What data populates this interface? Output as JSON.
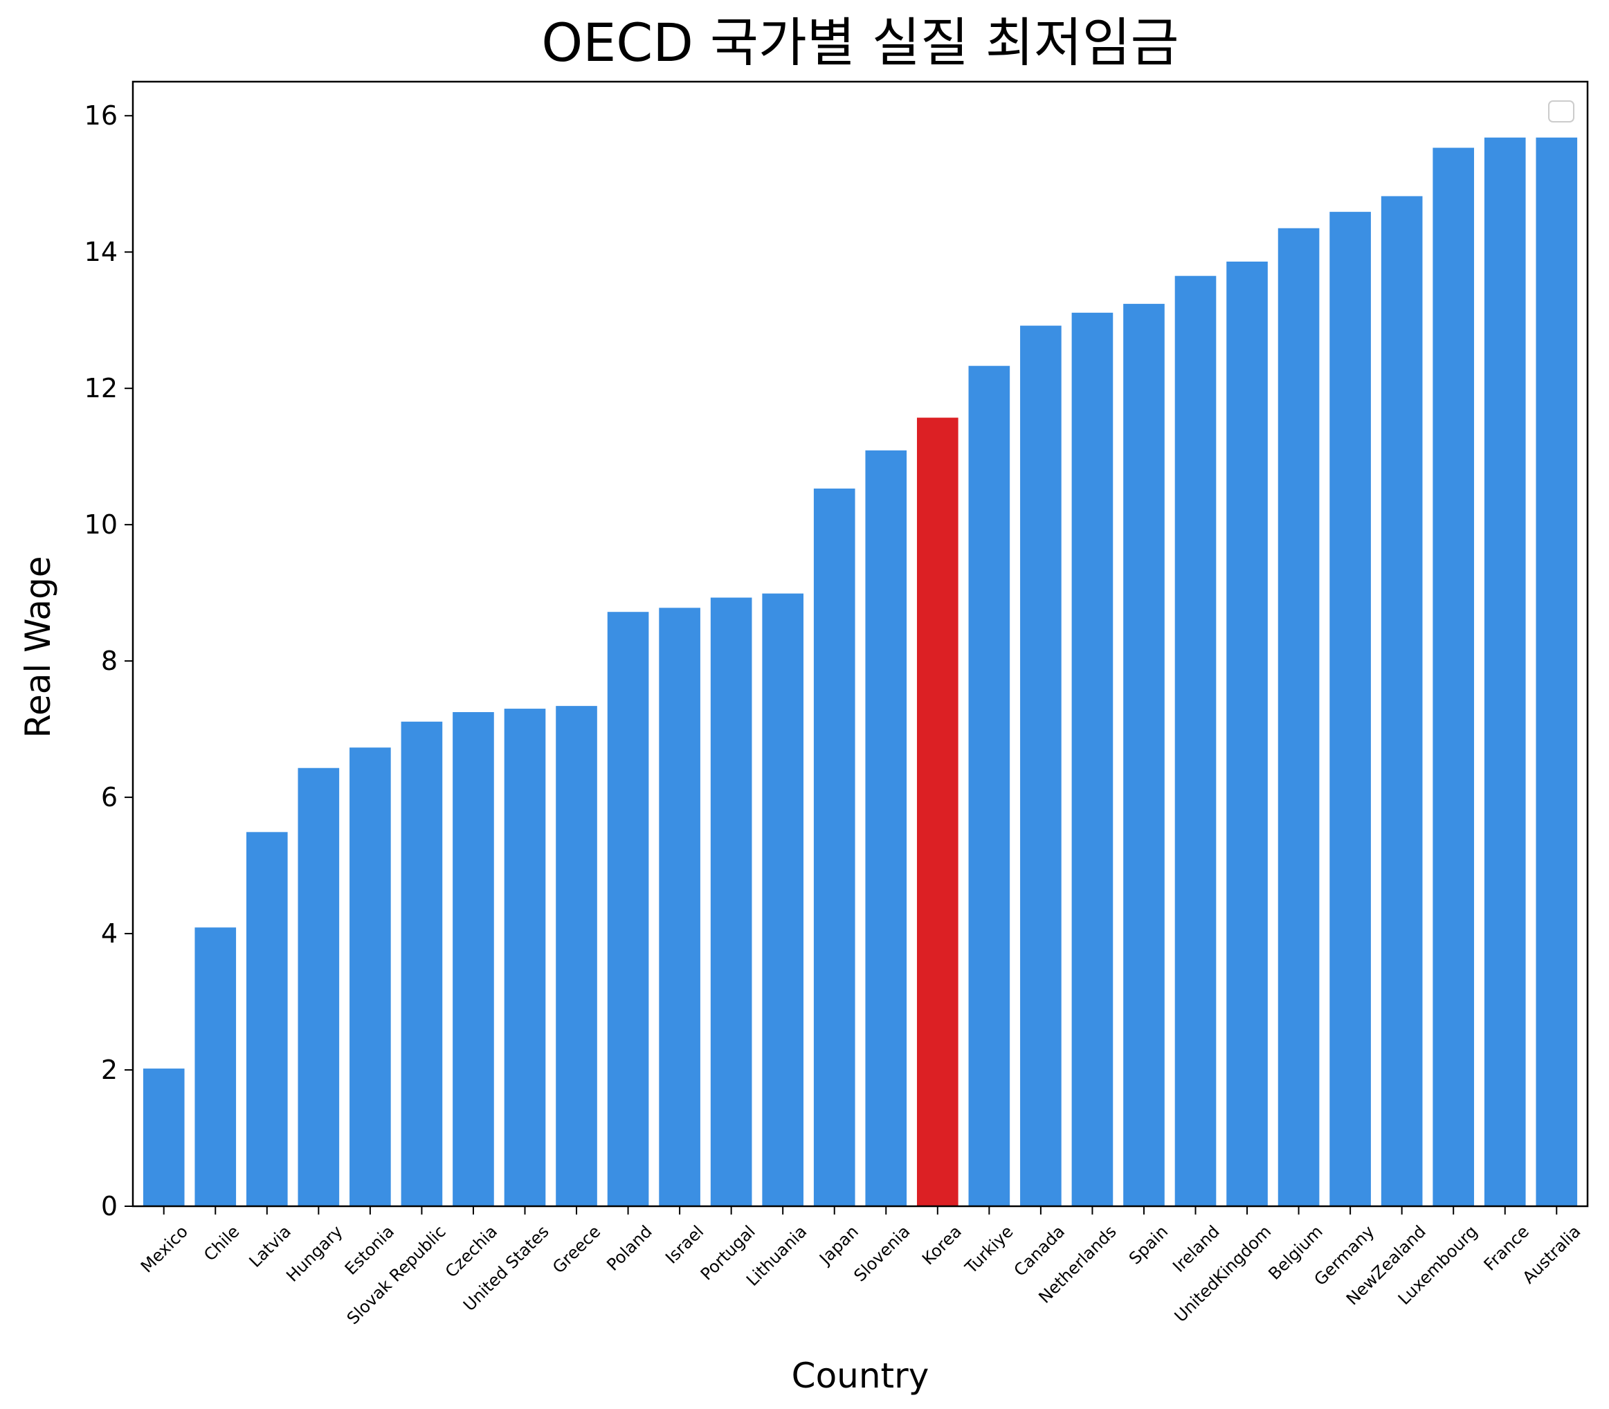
{
  "chart_data": {
    "type": "bar",
    "title": "OECD 국가별 실질 최저임금",
    "xlabel": "Country",
    "ylabel": "Real Wage",
    "ylim": [
      0,
      16.5
    ],
    "yticks": [
      0,
      2,
      4,
      6,
      8,
      10,
      12,
      14,
      16
    ],
    "grid": false,
    "legend": "top-right (empty)",
    "bar_color": "#3b8fe3",
    "highlight_color": "#dc2024",
    "highlight_category": "Korea",
    "categories": [
      "Mexico",
      "Chile",
      "Latvia",
      "Hungary",
      "Estonia",
      "Slovak Republic",
      "Czechia",
      "United States",
      "Greece",
      "Poland",
      "Israel",
      "Portugal",
      "Lithuania",
      "Japan",
      "Slovenia",
      "Korea",
      "Turkiye",
      "Canada",
      "Netherlands",
      "Spain",
      "Ireland",
      "UnitedKingdom",
      "Belgium",
      "Germany",
      "NewZealand",
      "Luxembourg",
      "France",
      "Australia"
    ],
    "values": [
      2.02,
      4.09,
      5.49,
      6.43,
      6.73,
      7.11,
      7.25,
      7.3,
      7.34,
      8.72,
      8.78,
      8.93,
      8.99,
      10.53,
      11.09,
      11.57,
      12.33,
      12.92,
      13.11,
      13.24,
      13.65,
      13.86,
      14.35,
      14.59,
      14.82,
      15.53,
      15.68,
      15.68
    ]
  }
}
